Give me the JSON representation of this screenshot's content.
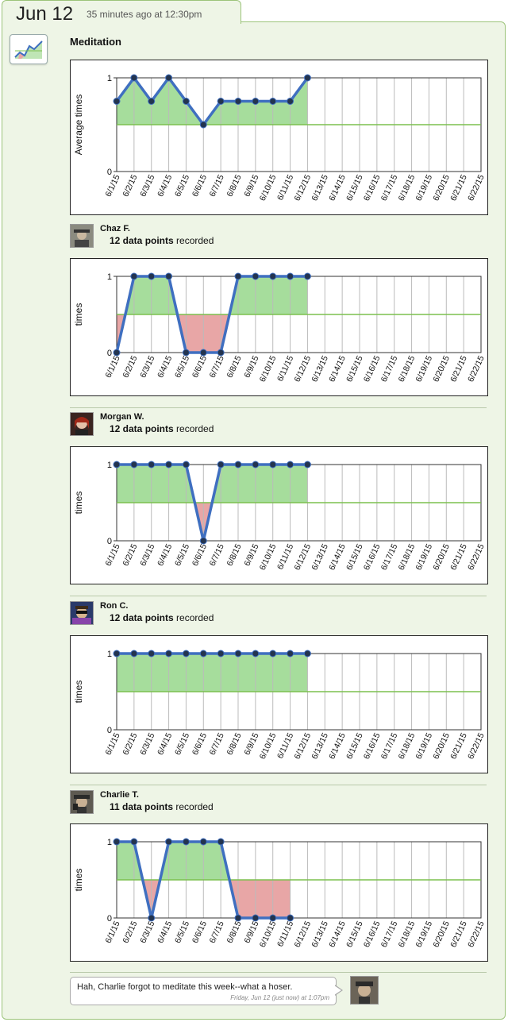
{
  "header": {
    "date": "Jun 12",
    "time_ago": "35 minutes ago at 12:30pm"
  },
  "feed": {
    "title": "Meditation",
    "icon": "line-chart-icon"
  },
  "colors": {
    "line": "#3f6fc0",
    "dot": "#23344f",
    "above_fill": "#a6dd9c",
    "below_fill": "#e8a6a6",
    "baseline": "#7cc04f",
    "grid": "#bbbbbb"
  },
  "dates": [
    "6/1/15",
    "6/2/15",
    "6/3/15",
    "6/4/15",
    "6/5/15",
    "6/6/15",
    "6/7/15",
    "6/8/15",
    "6/9/15",
    "6/10/15",
    "6/11/15",
    "6/12/15",
    "6/13/15",
    "6/14/15",
    "6/15/15",
    "6/16/15",
    "6/17/15",
    "6/18/15",
    "6/19/15",
    "6/20/15",
    "6/21/15",
    "6/22/15"
  ],
  "chart_data": [
    {
      "type": "line",
      "ylabel": "Average times",
      "ylim": [
        0,
        1
      ],
      "yticks": [
        "0",
        "1"
      ],
      "baseline": 0.5,
      "x": [
        "6/1/15",
        "6/2/15",
        "6/3/15",
        "6/4/15",
        "6/5/15",
        "6/6/15",
        "6/7/15",
        "6/8/15",
        "6/9/15",
        "6/10/15",
        "6/11/15",
        "6/12/15"
      ],
      "values": [
        0.75,
        1,
        0.75,
        1,
        0.75,
        0.5,
        0.75,
        0.75,
        0.75,
        0.75,
        0.75,
        1
      ]
    },
    {
      "type": "line",
      "ylabel": "times",
      "ylim": [
        0,
        1
      ],
      "yticks": [
        "0",
        "1"
      ],
      "baseline": 0.5,
      "x": [
        "6/1/15",
        "6/2/15",
        "6/3/15",
        "6/4/15",
        "6/5/15",
        "6/6/15",
        "6/7/15",
        "6/8/15",
        "6/9/15",
        "6/10/15",
        "6/11/15",
        "6/12/15"
      ],
      "values": [
        0,
        1,
        1,
        1,
        0,
        0,
        0,
        1,
        1,
        1,
        1,
        1
      ]
    },
    {
      "type": "line",
      "ylabel": "times",
      "ylim": [
        0,
        1
      ],
      "yticks": [
        "0",
        "1"
      ],
      "baseline": 0.5,
      "x": [
        "6/1/15",
        "6/2/15",
        "6/3/15",
        "6/4/15",
        "6/5/15",
        "6/6/15",
        "6/7/15",
        "6/8/15",
        "6/9/15",
        "6/10/15",
        "6/11/15",
        "6/12/15"
      ],
      "values": [
        1,
        1,
        1,
        1,
        1,
        0,
        1,
        1,
        1,
        1,
        1,
        1
      ]
    },
    {
      "type": "line",
      "ylabel": "times",
      "ylim": [
        0,
        1
      ],
      "yticks": [
        "0",
        "1"
      ],
      "baseline": 0.5,
      "x": [
        "6/1/15",
        "6/2/15",
        "6/3/15",
        "6/4/15",
        "6/5/15",
        "6/6/15",
        "6/7/15",
        "6/8/15",
        "6/9/15",
        "6/10/15",
        "6/11/15",
        "6/12/15"
      ],
      "values": [
        1,
        1,
        1,
        1,
        1,
        1,
        1,
        1,
        1,
        1,
        1,
        1
      ]
    },
    {
      "type": "line",
      "ylabel": "times",
      "ylim": [
        0,
        1
      ],
      "yticks": [
        "0",
        "1"
      ],
      "baseline": 0.5,
      "x": [
        "6/1/15",
        "6/2/15",
        "6/4/15",
        "6/5/15",
        "6/6/15",
        "6/7/15",
        "6/8/15",
        "6/9/15",
        "6/10/15",
        "6/11/15",
        "6/3/15"
      ],
      "values": [
        1,
        1,
        1,
        1,
        1,
        1,
        0,
        0,
        0,
        0,
        0
      ]
    }
  ],
  "users": [
    {
      "name": "Chaz F.",
      "points_label": "12 data points",
      "suffix": " recorded",
      "avatar": "avatar-chaz"
    },
    {
      "name": "Morgan W.",
      "points_label": "12 data points",
      "suffix": " recorded",
      "avatar": "avatar-morgan"
    },
    {
      "name": "Ron C.",
      "points_label": "12 data points",
      "suffix": " recorded",
      "avatar": "avatar-ron"
    },
    {
      "name": "Charlie T.",
      "points_label": "11 data points",
      "suffix": " recorded",
      "avatar": "avatar-charlie"
    }
  ],
  "comment": {
    "text": "Hah, Charlie forgot to meditate this week--what a hoser.",
    "meta": "Friday, Jun 12 (just now) at 1:07pm"
  }
}
